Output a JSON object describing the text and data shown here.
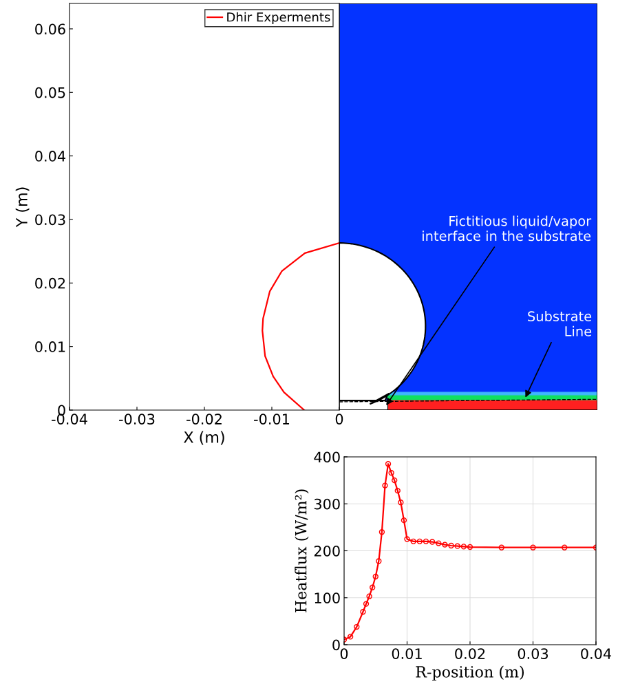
{
  "chart_data": [
    {
      "type": "line",
      "xlabel": "X (m)",
      "ylabel": "Y (m)",
      "xlim": [
        -0.04,
        0
      ],
      "ylim": [
        0,
        0.064
      ],
      "xticks": [
        -0.04,
        -0.03,
        -0.02,
        -0.01,
        0
      ],
      "yticks": [
        0,
        0.01,
        0.02,
        0.03,
        0.04,
        0.05,
        0.06
      ],
      "grid": false,
      "legend": "top right",
      "marker": "none",
      "line_style": "solid",
      "series": [
        {
          "name": "Dhir Experments",
          "color": "#ff0000",
          "x": [
            0,
            -0.0051,
            -0.0085,
            -0.0103,
            -0.0113,
            -0.0114,
            -0.011,
            -0.0098,
            -0.0082,
            -0.0052
          ],
          "values": [
            0.0263,
            0.0247,
            0.0219,
            0.0187,
            0.0144,
            0.0125,
            0.0085,
            0.0053,
            0.0028,
            0
          ]
        }
      ],
      "annotations": [
        "Fictitious liquid/vapor\ninterface in the substrate",
        "Substrate\n Line"
      ]
    },
    {
      "type": "line",
      "xlabel": "R-position (m)",
      "ylabel": "Heatflux (W/m²)",
      "xlim": [
        0,
        0.04
      ],
      "ylim": [
        0,
        400
      ],
      "xticks": [
        0,
        0.01,
        0.02,
        0.03,
        0.04
      ],
      "yticks": [
        0,
        100,
        200,
        300,
        400
      ],
      "grid": true,
      "marker": "circle",
      "line_style": "solid",
      "series": [
        {
          "color": "#ff0000",
          "x": [
            0,
            0.001,
            0.002,
            0.003,
            0.0035,
            0.004,
            0.0045,
            0.005,
            0.0055,
            0.006,
            0.0065,
            0.007,
            0.0075,
            0.008,
            0.0085,
            0.009,
            0.0095,
            0.01,
            0.011,
            0.012,
            0.013,
            0.014,
            0.015,
            0.016,
            0.017,
            0.018,
            0.019,
            0.02,
            0.025,
            0.03,
            0.035,
            0.04
          ],
          "values": [
            11,
            17,
            38,
            70,
            87,
            103,
            122,
            145,
            178,
            240,
            339,
            385,
            366,
            350,
            328,
            303,
            265,
            225,
            220,
            220,
            220,
            219,
            216,
            213,
            211,
            210,
            209,
            208,
            207,
            207,
            207,
            207
          ]
        }
      ]
    }
  ]
}
